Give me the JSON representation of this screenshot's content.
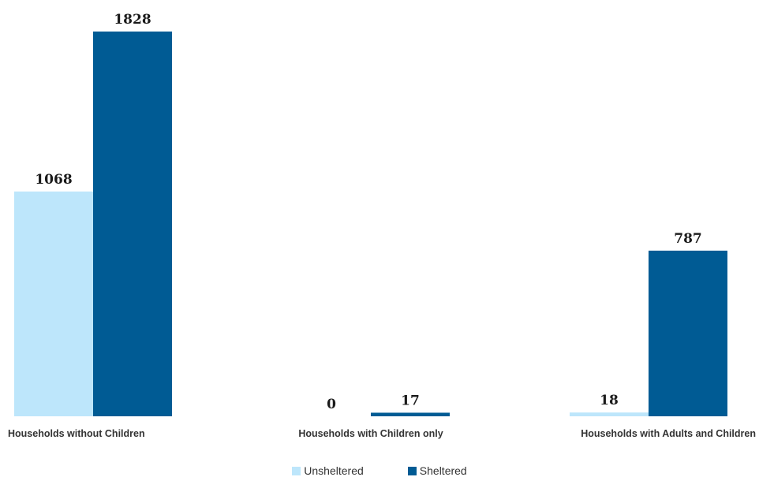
{
  "chart_data": {
    "type": "bar",
    "categories": [
      "Households without Children",
      "Households with Children only",
      "Households with Adults and Children"
    ],
    "series": [
      {
        "name": "Unsheltered",
        "values": [
          1068,
          0,
          18
        ],
        "color": "#bde6fb"
      },
      {
        "name": "Sheltered",
        "values": [
          1828,
          17,
          787
        ],
        "color": "#005b94"
      }
    ],
    "ylim": [
      0,
      1828
    ],
    "grid": false,
    "legend_position": "bottom-center"
  }
}
